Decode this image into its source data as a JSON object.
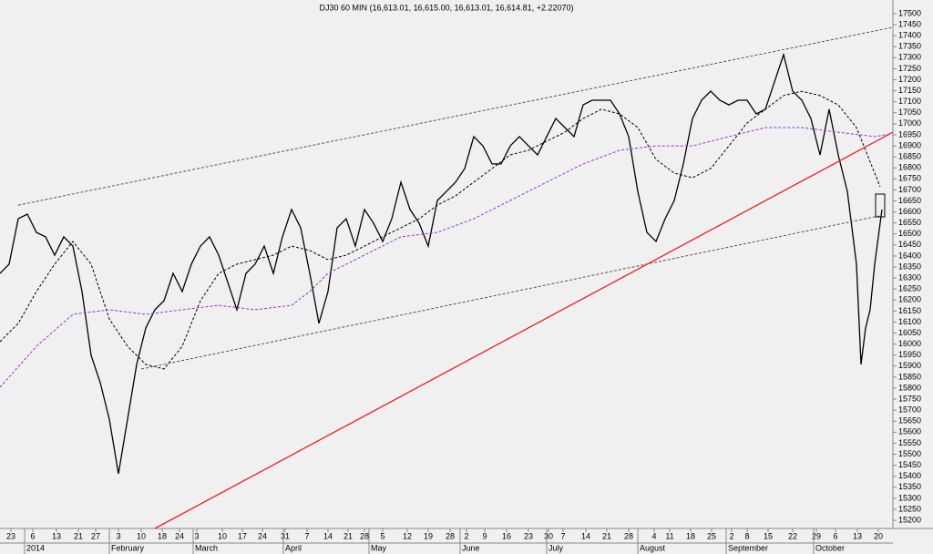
{
  "chart_data": {
    "type": "line",
    "title": "DJ30 60 MIN (16,613.01, 16,615.00, 16,613.01, 16,614.81, +2.22070)",
    "xlim": [
      0,
      98
    ],
    "ylim": [
      15163,
      17562
    ],
    "yticks": [
      15200,
      15250,
      15300,
      15350,
      15400,
      15450,
      15500,
      15550,
      15600,
      15650,
      15700,
      15750,
      15800,
      15850,
      15900,
      15950,
      16000,
      16050,
      16100,
      16150,
      16200,
      16250,
      16300,
      16350,
      16400,
      16450,
      16500,
      16550,
      16600,
      16650,
      16700,
      16750,
      16800,
      16850,
      16900,
      16950,
      17000,
      17050,
      17100,
      17150,
      17200,
      17250,
      17300,
      17350,
      17400,
      17450,
      17500
    ],
    "xticks": [
      {
        "value": 1.2,
        "label": "23"
      },
      {
        "value": 3.6,
        "label": "6"
      },
      {
        "value": 6.2,
        "label": "13"
      },
      {
        "value": 8.6,
        "label": "21"
      },
      {
        "value": 10.5,
        "label": "27"
      },
      {
        "value": 13,
        "label": "3"
      },
      {
        "value": 15.5,
        "label": "10"
      },
      {
        "value": 17.8,
        "label": "18"
      },
      {
        "value": 19.7,
        "label": "24"
      },
      {
        "value": 21.6,
        "label": "3"
      },
      {
        "value": 24.4,
        "label": "10"
      },
      {
        "value": 26.6,
        "label": "17"
      },
      {
        "value": 28.8,
        "label": "24"
      },
      {
        "value": 31.3,
        "label": "31"
      },
      {
        "value": 33.7,
        "label": "7"
      },
      {
        "value": 36,
        "label": "14"
      },
      {
        "value": 38.2,
        "label": "21"
      },
      {
        "value": 40,
        "label": "28"
      },
      {
        "value": 42,
        "label": "5"
      },
      {
        "value": 44.7,
        "label": "12"
      },
      {
        "value": 47,
        "label": "19"
      },
      {
        "value": 49.4,
        "label": "28"
      },
      {
        "value": 51.2,
        "label": "2"
      },
      {
        "value": 53.2,
        "label": "9"
      },
      {
        "value": 55.6,
        "label": "16"
      },
      {
        "value": 58,
        "label": "23"
      },
      {
        "value": 60.2,
        "label": "30"
      },
      {
        "value": 61.8,
        "label": "7"
      },
      {
        "value": 64.3,
        "label": "14"
      },
      {
        "value": 66.6,
        "label": "21"
      },
      {
        "value": 69,
        "label": "28"
      },
      {
        "value": 71.8,
        "label": "4"
      },
      {
        "value": 73.5,
        "label": "11"
      },
      {
        "value": 75.8,
        "label": "18"
      },
      {
        "value": 78.1,
        "label": "25"
      },
      {
        "value": 80.3,
        "label": "2"
      },
      {
        "value": 82,
        "label": "8"
      },
      {
        "value": 84.3,
        "label": "15"
      },
      {
        "value": 87,
        "label": "22"
      },
      {
        "value": 89.6,
        "label": "29"
      },
      {
        "value": 91.7,
        "label": "6"
      },
      {
        "value": 94.1,
        "label": "13"
      },
      {
        "value": 96.4,
        "label": "20"
      }
    ],
    "month_labels": [
      {
        "value": 2.7,
        "label": "2014"
      },
      {
        "value": 12,
        "label": "February"
      },
      {
        "value": 21.2,
        "label": "March"
      },
      {
        "value": 31.1,
        "label": "April"
      },
      {
        "value": 40.5,
        "label": "May"
      },
      {
        "value": 50.5,
        "label": "June"
      },
      {
        "value": 60,
        "label": "July"
      },
      {
        "value": 70,
        "label": "August"
      },
      {
        "value": 79.7,
        "label": "September"
      },
      {
        "value": 89.3,
        "label": "October"
      }
    ],
    "series": [
      {
        "color": "#000000",
        "dash": false,
        "x": [
          0,
          1,
          2,
          3,
          4,
          5,
          6,
          7,
          8,
          9,
          10,
          11,
          12,
          13,
          14,
          15,
          16,
          17,
          18,
          19,
          20,
          21,
          22,
          23,
          24,
          25,
          26,
          27,
          28,
          29,
          30,
          31,
          32,
          33,
          34,
          35,
          36,
          37,
          38,
          39,
          40,
          41,
          42,
          43,
          44,
          45,
          46,
          47,
          48,
          49,
          50,
          51,
          52,
          53,
          54,
          55,
          56,
          57,
          58,
          59,
          60,
          61,
          62,
          63,
          64,
          65,
          66,
          67,
          68,
          69,
          70,
          71,
          72,
          73,
          74,
          75,
          76,
          77,
          78,
          79,
          80,
          81,
          82,
          83,
          84,
          85,
          86,
          87,
          88,
          89,
          90,
          91,
          92,
          93,
          94,
          94.5,
          95,
          95.5,
          96,
          96.8
        ],
        "values": [
          16321,
          16363,
          16569,
          16590,
          16507,
          16487,
          16404,
          16487,
          16445,
          16239,
          15949,
          15825,
          15659,
          15411,
          15659,
          15908,
          16073,
          16156,
          16197,
          16321,
          16239,
          16363,
          16445,
          16487,
          16404,
          16280,
          16156,
          16321,
          16363,
          16445,
          16321,
          16487,
          16611,
          16528,
          16321,
          16094,
          16239,
          16528,
          16569,
          16445,
          16611,
          16549,
          16466,
          16569,
          16735,
          16611,
          16549,
          16445,
          16652,
          16693,
          16735,
          16797,
          16942,
          16900,
          16818,
          16818,
          16900,
          16942,
          16900,
          16859,
          16942,
          17024,
          16983,
          16942,
          17086,
          17107,
          17107,
          17107,
          17045,
          16942,
          16693,
          16507,
          16466,
          16569,
          16652,
          16818,
          17024,
          17107,
          17148,
          17107,
          17086,
          17107,
          17107,
          17045,
          17066,
          17190,
          17314,
          17148,
          17107,
          17024,
          16859,
          17066,
          16859,
          16693,
          16363,
          15908,
          16073,
          16156,
          16363,
          16611
        ]
      },
      {
        "color": "#000000",
        "dash": true,
        "x": [
          0,
          2,
          4,
          6,
          8,
          10,
          12,
          14,
          16,
          18,
          20,
          22,
          24,
          26,
          28,
          30,
          32,
          34,
          36,
          38,
          40,
          42,
          44,
          46,
          48,
          50,
          52,
          54,
          56,
          58,
          60,
          62,
          64,
          66,
          68,
          70,
          72,
          74,
          76,
          78,
          80,
          82,
          84,
          86,
          88,
          90,
          92,
          94,
          96,
          96.6
        ],
        "values": [
          16011,
          16094,
          16239,
          16363,
          16466,
          16363,
          16114,
          15990,
          15908,
          15887,
          15990,
          16197,
          16321,
          16363,
          16383,
          16404,
          16445,
          16425,
          16383,
          16404,
          16445,
          16487,
          16528,
          16569,
          16631,
          16673,
          16735,
          16797,
          16859,
          16880,
          16921,
          16962,
          17024,
          17066,
          17045,
          16983,
          16838,
          16776,
          16755,
          16797,
          16900,
          17004,
          17066,
          17128,
          17148,
          17128,
          17086,
          16983,
          16776,
          16714
        ]
      },
      {
        "color": "#9933cc",
        "dash": true,
        "x": [
          0,
          4,
          8,
          12,
          16,
          20,
          24,
          28,
          32,
          34,
          36,
          40,
          44,
          48,
          52,
          56,
          60,
          64,
          68,
          72,
          76,
          80,
          84,
          88,
          92,
          96,
          97.8
        ],
        "values": [
          15804,
          15990,
          16135,
          16156,
          16135,
          16156,
          16176,
          16156,
          16176,
          16239,
          16321,
          16404,
          16487,
          16507,
          16569,
          16652,
          16735,
          16818,
          16880,
          16900,
          16900,
          16942,
          16983,
          16983,
          16962,
          16942,
          16954
        ]
      },
      {
        "color": "#555555",
        "dash": true,
        "x": [
          2,
          98
        ],
        "values": [
          16631,
          17438
        ]
      },
      {
        "color": "#555555",
        "dash": true,
        "x": [
          15.5,
          96.5
        ],
        "values": [
          15887,
          16582
        ]
      },
      {
        "color": "#e8202a",
        "dash": false,
        "x": [
          17,
          98
        ],
        "values": [
          15163,
          16962
        ]
      }
    ]
  }
}
